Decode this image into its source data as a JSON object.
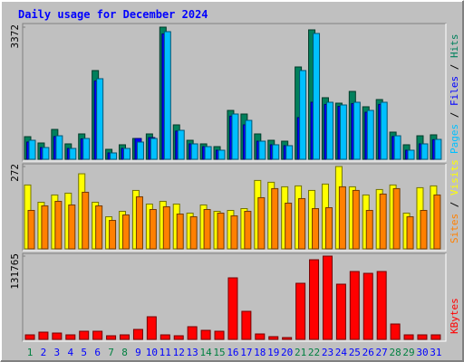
{
  "title": "Daily usage for December 2024",
  "legend_separator": " / ",
  "chart_data": [
    {
      "type": "bar",
      "ylim": [
        0,
        3372
      ],
      "yticks": [
        3372
      ],
      "series": [
        {
          "name": "Pages",
          "color": "#00c0ff",
          "values": [
            485,
            300,
            600,
            277,
            531,
            2056,
            162,
            277,
            439,
            531,
            3257,
            739,
            393,
            323,
            231,
            1155,
            993,
            462,
            370,
            347,
            2264,
            3211,
            1455,
            1386,
            1455,
            1247,
            1455,
            600,
            231,
            393,
            508
          ]
        },
        {
          "name": "Files",
          "color": "#0000ff",
          "values": [
            440,
            300,
            580,
            277,
            520,
            2000,
            162,
            277,
            531,
            554,
            3200,
            720,
            393,
            323,
            231,
            1100,
            878,
            462,
            370,
            347,
            1063,
            1455,
            1400,
            1350,
            1420,
            1200,
            1400,
            580,
            231,
            393,
            500
          ]
        },
        {
          "name": "Hits",
          "color": "#00805c",
          "values": [
            577,
            416,
            762,
            393,
            647,
            2264,
            254,
            370,
            531,
            647,
            3372,
            878,
            485,
            393,
            323,
            1247,
            1155,
            647,
            485,
            462,
            2356,
            3303,
            1571,
            1432,
            1732,
            1340,
            1524,
            693,
            370,
            600,
            624
          ]
        }
      ]
    },
    {
      "type": "bar",
      "ylim": [
        0,
        272
      ],
      "yticks": [
        272
      ],
      "series": [
        {
          "name": "Sites",
          "color": "#ff8000",
          "values": [
            127,
            142,
            157,
            145,
            187,
            142,
            94,
            112,
            172,
            130,
            139,
            115,
            106,
            130,
            118,
            109,
            124,
            169,
            199,
            151,
            166,
            133,
            136,
            205,
            193,
            127,
            181,
            199,
            106,
            127,
            178
          ]
        },
        {
          "name": "Visits",
          "color": "#ffff00",
          "values": [
            211,
            154,
            178,
            184,
            248,
            154,
            106,
            124,
            193,
            148,
            157,
            148,
            118,
            145,
            124,
            127,
            133,
            226,
            220,
            205,
            208,
            193,
            214,
            272,
            205,
            178,
            196,
            211,
            118,
            202,
            208
          ]
        }
      ]
    },
    {
      "type": "bar",
      "ylim": [
        0,
        131765
      ],
      "yticks": [
        131765
      ],
      "categories": [
        "1",
        "2",
        "3",
        "4",
        "5",
        "6",
        "7",
        "8",
        "9",
        "10",
        "11",
        "12",
        "13",
        "14",
        "15",
        "16",
        "17",
        "18",
        "19",
        "20",
        "21",
        "22",
        "23",
        "24",
        "25",
        "26",
        "27",
        "28",
        "29",
        "30",
        "31"
      ],
      "category_colors": [
        "#008040",
        "#0000ff",
        "#0000ff",
        "#0000ff",
        "#0000ff",
        "#0000ff",
        "#008040",
        "#008040",
        "#0000ff",
        "#0000ff",
        "#0000ff",
        "#0000ff",
        "#0000ff",
        "#008040",
        "#008040",
        "#0000ff",
        "#0000ff",
        "#0000ff",
        "#0000ff",
        "#0000ff",
        "#008040",
        "#008040",
        "#0000ff",
        "#0000ff",
        "#0000ff",
        "#0000ff",
        "#0000ff",
        "#008040",
        "#008040",
        "#0000ff",
        "#0000ff"
      ],
      "series": [
        {
          "name": "KBytes",
          "color": "#ff0000",
          "values": [
            7160,
            11456,
            10024,
            7160,
            12888,
            12888,
            5728,
            7160,
            15752,
            35800,
            7160,
            5728,
            20048,
            14320,
            12888,
            97376,
            44392,
            8592,
            4296,
            2864,
            88784,
            126016,
            131765,
            87352,
            107400,
            104536,
            107400,
            24344,
            7160,
            7160,
            7160
          ]
        }
      ]
    }
  ]
}
